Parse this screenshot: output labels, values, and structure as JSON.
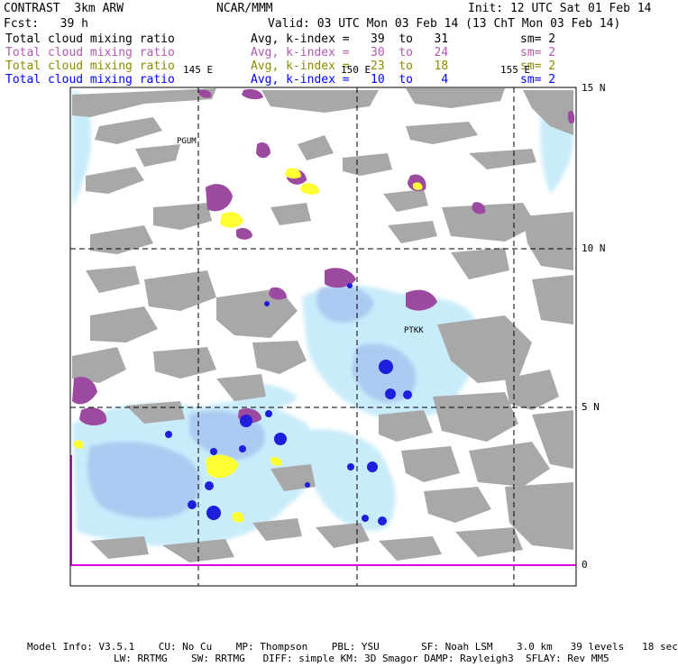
{
  "header": {
    "title": "CONTRAST  3km ARW",
    "center": "NCAR/MMM",
    "init": "Init: 12 UTC Sat 01 Feb 14",
    "fcst": "Fcst:   39 h",
    "valid": "Valid: 03 UTC Mon 03 Feb 14 (13 ChT Mon 03 Feb 14)"
  },
  "fields": [
    {
      "name": "Total cloud mixing ratio",
      "info": "Avg, k-index =   39  to   31",
      "sm": "sm= 2",
      "color": "#000000"
    },
    {
      "name": "Total cloud mixing ratio",
      "info": "Avg, k-index =   30  to   24",
      "sm": "sm= 2",
      "color": "#b05ab0"
    },
    {
      "name": "Total cloud mixing ratio",
      "info": "Avg, k-index =   23  to   18",
      "sm": "sm= 2",
      "color": "#8b8b00"
    },
    {
      "name": "Total cloud mixing ratio",
      "info": "Avg, k-index =   10  to    4",
      "sm": "sm= 2",
      "color": "#0000ff"
    }
  ],
  "map": {
    "lon_labels": [
      "145 E",
      "150 E",
      "155 E"
    ],
    "lat_labels": [
      "15 N",
      "10 N",
      "5 N",
      "0"
    ],
    "stations": [
      "PGUM",
      "PTKK"
    ],
    "colors": {
      "frame": "#000000",
      "grid": "#000000",
      "high_cloud": "#a8a8a8",
      "mid_cloud": "#9b4aa0",
      "low_cloud": "#ffff33",
      "light_cloud": "#c9ecfa",
      "dense_cloud": "#1e1edc",
      "equator_line": "#dd00dd"
    }
  },
  "footer": {
    "line1": "Model Info: V3.5.1    CU: No Cu    MP: Thompson    PBL: YSU       SF: Noah LSM    3.0 km   39 levels   18 sec",
    "line2": "LW: RRTMG    SW: RRTMG   DIFF: simple KM: 3D Smagor DAMP: Rayleigh3  SFLAY: Rev MM5"
  }
}
